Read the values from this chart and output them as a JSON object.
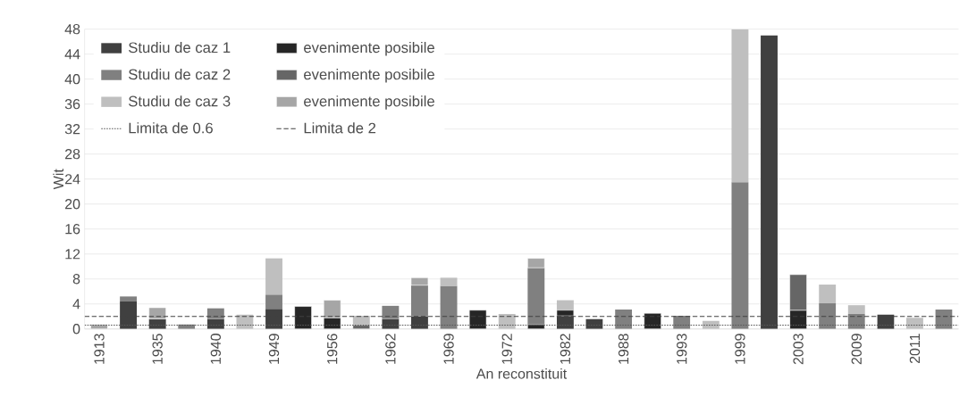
{
  "chart_data": {
    "type": "bar",
    "stacked": true,
    "xlabel": "An reconstituit",
    "ylabel": "Wit",
    "categories": [
      "1913",
      null,
      "1935",
      null,
      "1940",
      null,
      "1949",
      null,
      "1956",
      null,
      "1962",
      null,
      "1969",
      null,
      "1972",
      null,
      "1982",
      null,
      "1988",
      null,
      "1993",
      null,
      "1999",
      null,
      "2003",
      null,
      "2009",
      null,
      "2011",
      null
    ],
    "series": [
      {
        "name": "Studiu de caz 1",
        "color": "#404040",
        "values": [
          null,
          4.4,
          1.6,
          null,
          1.6,
          null,
          3.2,
          null,
          null,
          null,
          1.6,
          2.0,
          null,
          null,
          null,
          null,
          2.1,
          1.6,
          null,
          null,
          null,
          null,
          null,
          47,
          null,
          null,
          null,
          2.3,
          null,
          null
        ]
      },
      {
        "name": "evenimente posibile",
        "color": "#262626",
        "values": [
          null,
          null,
          null,
          null,
          null,
          null,
          null,
          3.6,
          1.8,
          null,
          null,
          null,
          null,
          3.0,
          null,
          0.7,
          0.9,
          null,
          null,
          2.5,
          null,
          null,
          null,
          null,
          3.0,
          null,
          null,
          null,
          null,
          null
        ]
      },
      {
        "name": "Studiu de caz 2",
        "color": "#808080",
        "values": [
          null,
          0.8,
          null,
          0.7,
          1.7,
          null,
          2.3,
          null,
          null,
          null,
          2.1,
          5.0,
          6.9,
          null,
          null,
          9.1,
          null,
          null,
          3.1,
          null,
          2.1,
          null,
          23.5,
          null,
          null,
          4.1,
          2.4,
          null,
          null,
          3.1
        ]
      },
      {
        "name": "evenimente posibile",
        "color": "#666666",
        "values": [
          null,
          null,
          null,
          null,
          null,
          null,
          null,
          null,
          null,
          0.6,
          null,
          null,
          null,
          null,
          null,
          null,
          null,
          null,
          null,
          null,
          null,
          null,
          null,
          null,
          5.7,
          null,
          null,
          null,
          null,
          null
        ]
      },
      {
        "name": "Studiu de caz 3",
        "color": "#bfbfbf",
        "values": [
          null,
          null,
          null,
          null,
          null,
          2.3,
          5.8,
          null,
          null,
          1.5,
          null,
          null,
          1.3,
          null,
          2.4,
          null,
          1.6,
          null,
          null,
          null,
          null,
          1.3,
          24.5,
          null,
          null,
          3.0,
          1.4,
          null,
          1.8,
          null
        ]
      },
      {
        "name": "evenimente posibile",
        "color": "#a6a6a6",
        "values": [
          0.7,
          null,
          1.8,
          null,
          null,
          null,
          null,
          null,
          2.8,
          null,
          null,
          1.2,
          null,
          null,
          null,
          1.5,
          null,
          null,
          null,
          null,
          null,
          null,
          null,
          null,
          null,
          null,
          null,
          null,
          null,
          null
        ]
      }
    ],
    "ref_lines": [
      {
        "axis": "y",
        "value": 0.6,
        "label": "Limita de 0.6",
        "line_style": "dotted",
        "color": "#595959"
      },
      {
        "axis": "y",
        "value": 2,
        "label": "Limita de 2",
        "line_style": "dashed",
        "color": "#404040"
      }
    ],
    "ylim": [
      0,
      48
    ],
    "yticks": [
      0,
      4,
      8,
      12,
      16,
      20,
      24,
      28,
      32,
      36,
      40,
      44,
      48
    ],
    "grid": "y",
    "legend": "top left"
  }
}
